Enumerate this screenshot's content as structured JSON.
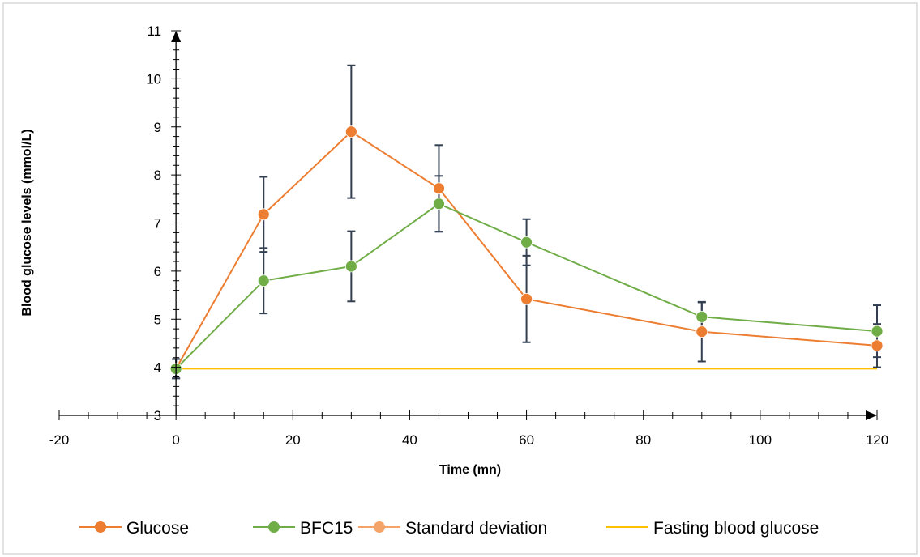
{
  "chart_data": {
    "type": "line",
    "title": "",
    "xlabel": "Time (mn)",
    "ylabel": "Blood glucose levels (mmol/L)",
    "xlim": [
      -20,
      120
    ],
    "ylim": [
      3,
      11
    ],
    "x_ticks": [
      -20,
      0,
      20,
      40,
      60,
      80,
      100,
      120
    ],
    "y_ticks": [
      3,
      4,
      5,
      6,
      7,
      8,
      9,
      10,
      11
    ],
    "x_tick_labels": [
      "-20",
      "0",
      "20",
      "40",
      "60",
      "80",
      "100",
      "120"
    ],
    "y_tick_labels": [
      "3",
      "4",
      "5",
      "6",
      "7",
      "8",
      "9",
      "10",
      "11"
    ],
    "grid": false,
    "legend_position": "bottom",
    "series": [
      {
        "name": "Glucose",
        "color": "#ED7D31",
        "marker": "circle",
        "x": [
          0,
          15,
          30,
          45,
          60,
          90,
          120
        ],
        "y": [
          3.97,
          7.18,
          8.9,
          7.72,
          5.42,
          4.74,
          4.45
        ],
        "error": [
          0.2,
          0.78,
          1.38,
          0.9,
          0.9,
          0.62,
          0.45
        ]
      },
      {
        "name": "BFC15",
        "color": "#70AD47",
        "marker": "circle",
        "x": [
          0,
          15,
          30,
          45,
          60,
          90,
          120
        ],
        "y": [
          3.97,
          5.8,
          6.1,
          7.4,
          6.6,
          5.05,
          4.75
        ],
        "error": [
          0.2,
          0.68,
          0.73,
          0.58,
          0.48,
          0.3,
          0.54
        ]
      }
    ],
    "reference_line": {
      "name": "Fasting blood glucose",
      "y": 3.97,
      "x_range": [
        0,
        120
      ],
      "color": "#FFC000"
    },
    "legend": [
      {
        "label": "Glucose",
        "color": "#ED7D31",
        "marker": true
      },
      {
        "label": "BFC15",
        "color": "#70AD47",
        "marker": true
      },
      {
        "label": "Standard deviation",
        "color": "#F4A469",
        "marker": true
      },
      {
        "label": "Fasting blood glucose",
        "color": "#FFC000",
        "marker": false
      }
    ],
    "error_bar_color": "#333F50",
    "axis_color": "#000000",
    "frame_color": "#D9D9D9"
  }
}
